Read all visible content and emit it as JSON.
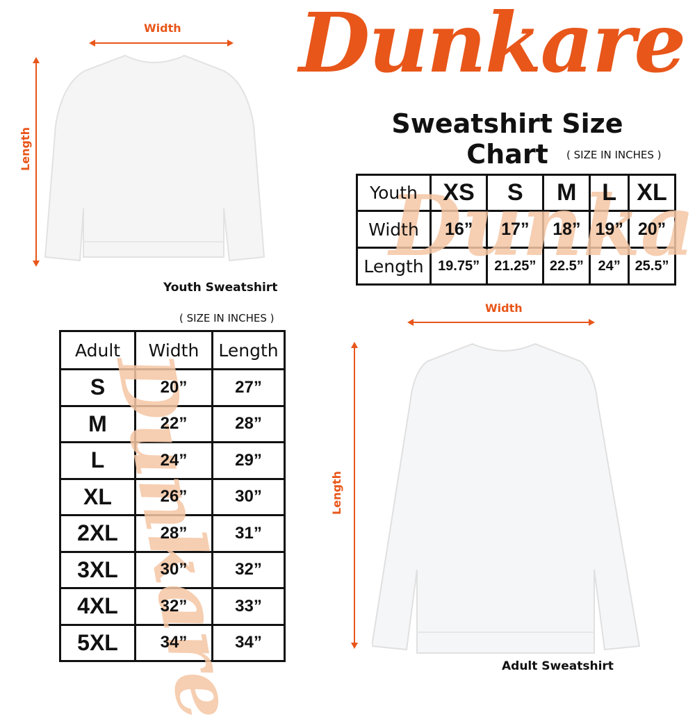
{
  "brand": {
    "logo_text": "Dunkare",
    "color": "#e8561a"
  },
  "title": "Sweatshirt Size Chart",
  "youth": {
    "caption": "Youth Sweatshirt",
    "width_label": "Width",
    "length_label": "Length",
    "units_note": "( SIZE IN INCHES )",
    "table": {
      "header": [
        "Youth",
        "XS",
        "S",
        "M",
        "L",
        "XL"
      ],
      "rows": [
        [
          "Width",
          "16”",
          "17”",
          "18”",
          "19”",
          "20”"
        ],
        [
          "Length",
          "19.75”",
          "21.25”",
          "22.5”",
          "24”",
          "25.5”"
        ]
      ]
    }
  },
  "adult": {
    "caption": "Adult Sweatshirt",
    "width_label": "Width",
    "length_label": "Length",
    "units_note": "( SIZE IN INCHES )",
    "table": {
      "header": [
        "Adult",
        "Width",
        "Length"
      ],
      "rows": [
        [
          "S",
          "20”",
          "27”"
        ],
        [
          "M",
          "22”",
          "28”"
        ],
        [
          "L",
          "24”",
          "29”"
        ],
        [
          "XL",
          "26”",
          "30”"
        ],
        [
          "2XL",
          "28”",
          "31”"
        ],
        [
          "3XL",
          "30”",
          "32”"
        ],
        [
          "4XL",
          "32”",
          "33”"
        ],
        [
          "5XL",
          "34”",
          "34”"
        ]
      ]
    }
  }
}
